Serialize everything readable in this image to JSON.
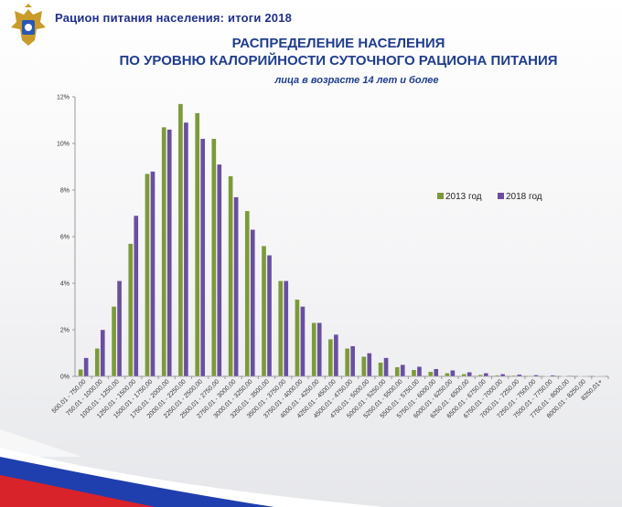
{
  "header": {
    "title": "Рацион питания населения: итоги 2018",
    "logo_icon": "double-headed-eagle-emblem"
  },
  "colors": {
    "title_blue": "#1f3d8c",
    "series_2013": "#7c9a3a",
    "series_2018": "#6a4fa0",
    "flag_blue": "#1f3fae",
    "flag_red": "#d8232a"
  },
  "chart_data": {
    "type": "bar",
    "title_line1": "РАСПРЕДЕЛЕНИЕ НАСЕЛЕНИЯ",
    "title_line2": "ПО УРОВНЮ КАЛОРИЙНОСТИ СУТОЧНОГО РАЦИОНА ПИТАНИЯ",
    "subtitle": "лица в возрасте 14 лет и более",
    "ylim": [
      0,
      12
    ],
    "yticks": [
      "0%",
      "2%",
      "4%",
      "6%",
      "8%",
      "10%",
      "12%"
    ],
    "grid": false,
    "legend_position": "right",
    "categories": [
      "500,01 - 750,00",
      "750,01 - 1000,00",
      "1000,01 - 1250,00",
      "1250,01 - 1500,00",
      "1500,01 - 1750,00",
      "1750,01 - 2000,00",
      "2000,01 - 2250,00",
      "2250,01 - 2500,00",
      "2500,01 - 2750,00",
      "2750,01 - 3000,00",
      "3000,01 - 3250,00",
      "3250,01 - 3500,00",
      "3500,01 - 3750,00",
      "3750,01 - 4000,00",
      "4000,01 - 4250,00",
      "4250,01 - 4500,00",
      "4500,01 - 4750,00",
      "4750,01 - 5000,00",
      "5000,01 - 5250,00",
      "5250,01 - 5500,00",
      "5500,01 - 5750,00",
      "5750,01 - 6000,00",
      "6000,01 - 6250,00",
      "6250,01 - 6500,00",
      "6500,01 - 6750,00",
      "6750,01 - 7000,00",
      "7000,01 - 7250,00",
      "7250,01 - 7500,00",
      "7500,01 - 7750,00",
      "7750,01 - 8000,00",
      "8000,01 - 8250,00",
      "8250,01+"
    ],
    "series": [
      {
        "name": "2013 год",
        "color": "#7c9a3a",
        "values": [
          0.3,
          1.2,
          3.0,
          5.7,
          8.7,
          10.7,
          11.7,
          11.3,
          10.2,
          8.6,
          7.1,
          5.6,
          4.1,
          3.3,
          2.3,
          1.6,
          1.2,
          0.85,
          0.6,
          0.4,
          0.28,
          0.2,
          0.14,
          0.1,
          0.07,
          0.05,
          0.04,
          0.03,
          0.02,
          0.015,
          0.01,
          0.02
        ]
      },
      {
        "name": "2018 год",
        "color": "#6a4fa0",
        "values": [
          0.8,
          2.0,
          4.1,
          6.9,
          8.8,
          10.6,
          10.9,
          10.2,
          9.1,
          7.7,
          6.3,
          5.2,
          4.1,
          3.0,
          2.3,
          1.8,
          1.3,
          1.0,
          0.8,
          0.5,
          0.42,
          0.32,
          0.26,
          0.18,
          0.14,
          0.1,
          0.08,
          0.06,
          0.05,
          0.03,
          0.02,
          0.02
        ]
      }
    ]
  }
}
